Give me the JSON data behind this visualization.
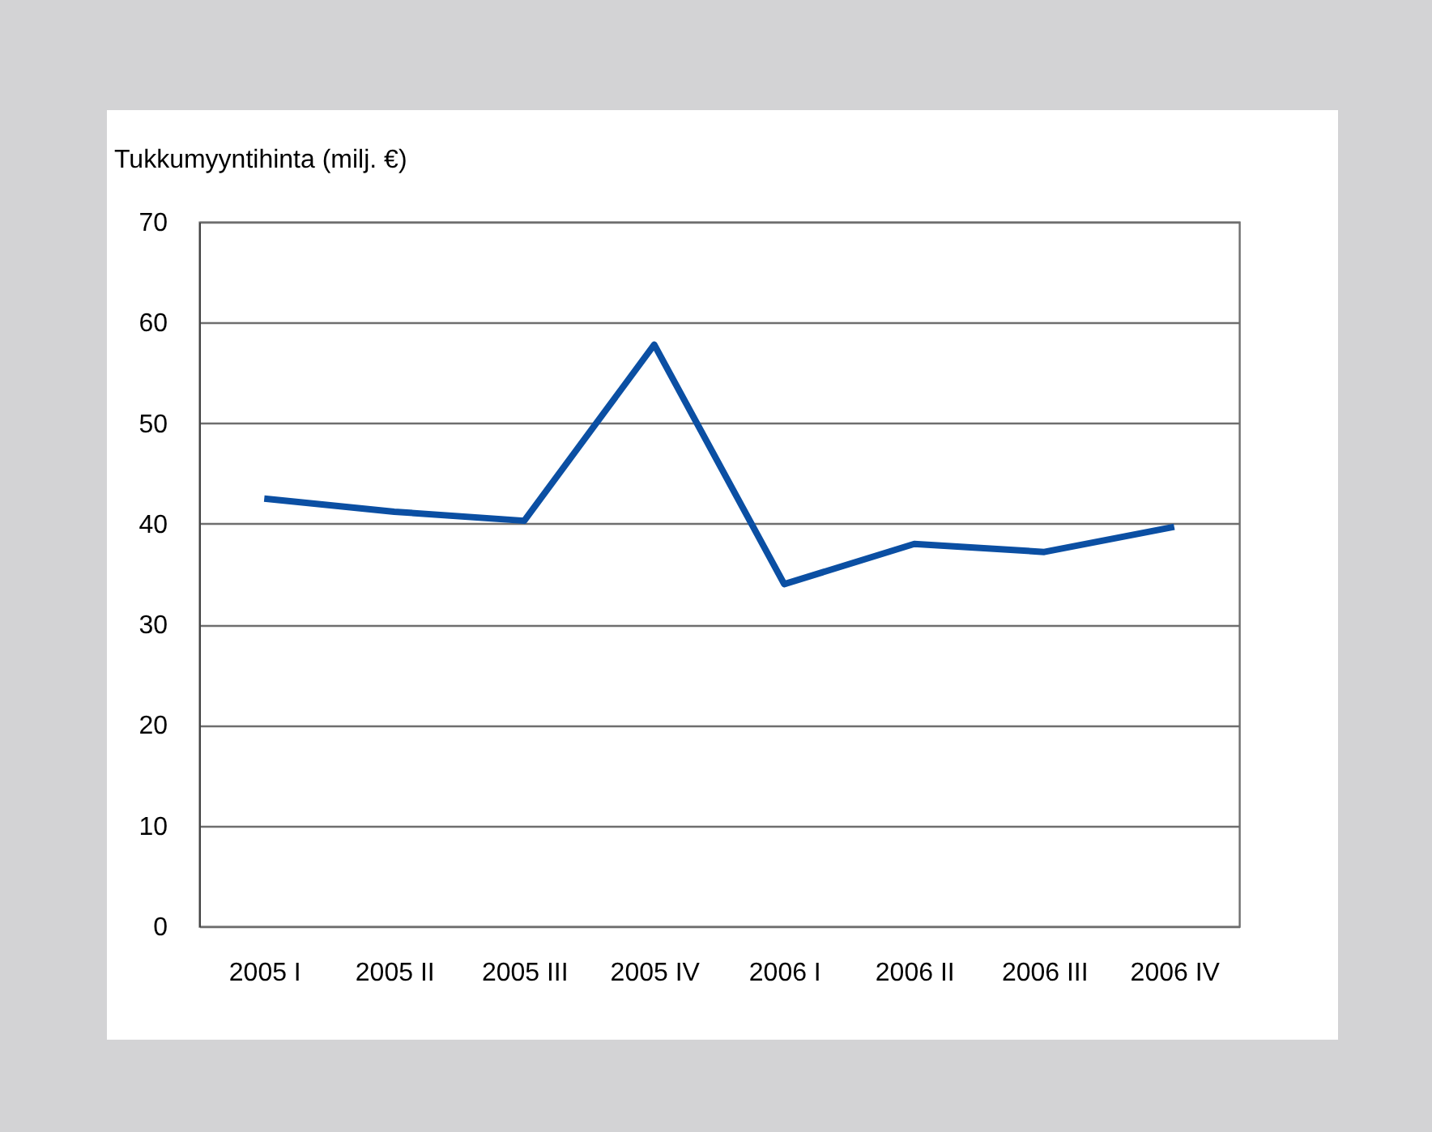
{
  "chart_data": {
    "type": "line",
    "ylabel": "Tukkumyyntihinta (milj. €)",
    "categories": [
      "2005 I",
      "2005 II",
      "2005 III",
      "2005 IV",
      "2006 I",
      "2006 II",
      "2006 III",
      "2006 IV"
    ],
    "series": [
      {
        "color": "#0b4fa3",
        "values": [
          42.5,
          41.2,
          40.3,
          57.8,
          34.0,
          38.0,
          37.2,
          39.7
        ]
      }
    ],
    "ylim": [
      0,
      70
    ],
    "yticks": [
      0,
      10,
      20,
      30,
      40,
      50,
      60,
      70
    ],
    "grid": "y",
    "marker": "none",
    "line_style": "solid"
  }
}
